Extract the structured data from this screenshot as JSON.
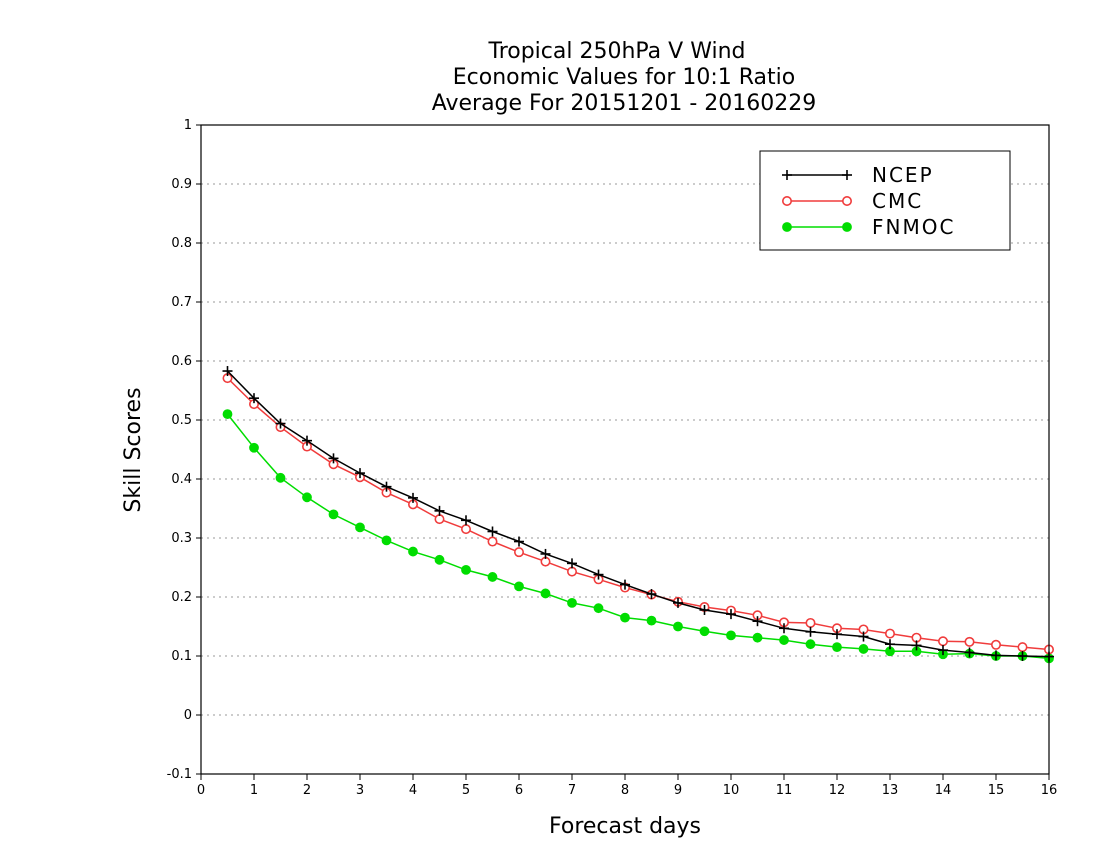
{
  "chart_data": {
    "type": "line",
    "title": [
      "Tropical 250hPa V Wind",
      "Economic Values for 10:1 Ratio",
      "Average For 20151201 - 20160229"
    ],
    "xlabel": "Forecast days",
    "ylabel": "Skill Scores",
    "xlim": [
      0,
      16
    ],
    "ylim": [
      -0.1,
      1
    ],
    "xticks": [
      0,
      1,
      2,
      3,
      4,
      5,
      6,
      7,
      8,
      9,
      10,
      11,
      12,
      13,
      14,
      15,
      16
    ],
    "yticks": [
      -0.1,
      0,
      0.1,
      0.2,
      0.3,
      0.4,
      0.5,
      0.6,
      0.7,
      0.8,
      0.9,
      1
    ],
    "ytick_labels": [
      "-0.1",
      "0",
      "0.1",
      "0.2",
      "0.3",
      "0.4",
      "0.5",
      "0.6",
      "0.7",
      "0.8",
      "0.9",
      "1"
    ],
    "grid": "horizontal dotted",
    "legend_position": "top-right",
    "x": [
      0.5,
      1,
      1.5,
      2,
      2.5,
      3,
      3.5,
      4,
      4.5,
      5,
      5.5,
      6,
      6.5,
      7,
      7.5,
      8,
      8.5,
      9,
      9.5,
      10,
      10.5,
      11,
      11.5,
      12,
      12.5,
      13,
      13.5,
      14,
      14.5,
      15,
      15.5,
      16
    ],
    "series": [
      {
        "name": "NCEP",
        "color": "#000000",
        "marker": "plus",
        "values": [
          0.583,
          0.537,
          0.494,
          0.465,
          0.435,
          0.41,
          0.387,
          0.368,
          0.346,
          0.33,
          0.311,
          0.294,
          0.273,
          0.257,
          0.238,
          0.221,
          0.205,
          0.19,
          0.178,
          0.171,
          0.159,
          0.147,
          0.141,
          0.137,
          0.133,
          0.12,
          0.118,
          0.11,
          0.106,
          0.101,
          0.1,
          0.099
        ]
      },
      {
        "name": "CMC",
        "color": "#f03c3c",
        "marker": "open-circle",
        "values": [
          0.571,
          0.527,
          0.488,
          0.455,
          0.425,
          0.403,
          0.377,
          0.357,
          0.332,
          0.315,
          0.294,
          0.276,
          0.26,
          0.243,
          0.23,
          0.216,
          0.204,
          0.192,
          0.183,
          0.177,
          0.169,
          0.157,
          0.156,
          0.147,
          0.145,
          0.138,
          0.131,
          0.125,
          0.124,
          0.119,
          0.115,
          0.111
        ]
      },
      {
        "name": "FNMOC",
        "color": "#00dd00",
        "marker": "filled-circle",
        "values": [
          0.51,
          0.453,
          0.402,
          0.369,
          0.34,
          0.318,
          0.296,
          0.277,
          0.263,
          0.246,
          0.234,
          0.218,
          0.206,
          0.19,
          0.181,
          0.165,
          0.16,
          0.15,
          0.142,
          0.135,
          0.131,
          0.127,
          0.12,
          0.115,
          0.112,
          0.108,
          0.108,
          0.103,
          0.104,
          0.1,
          0.1,
          0.096
        ]
      }
    ]
  }
}
